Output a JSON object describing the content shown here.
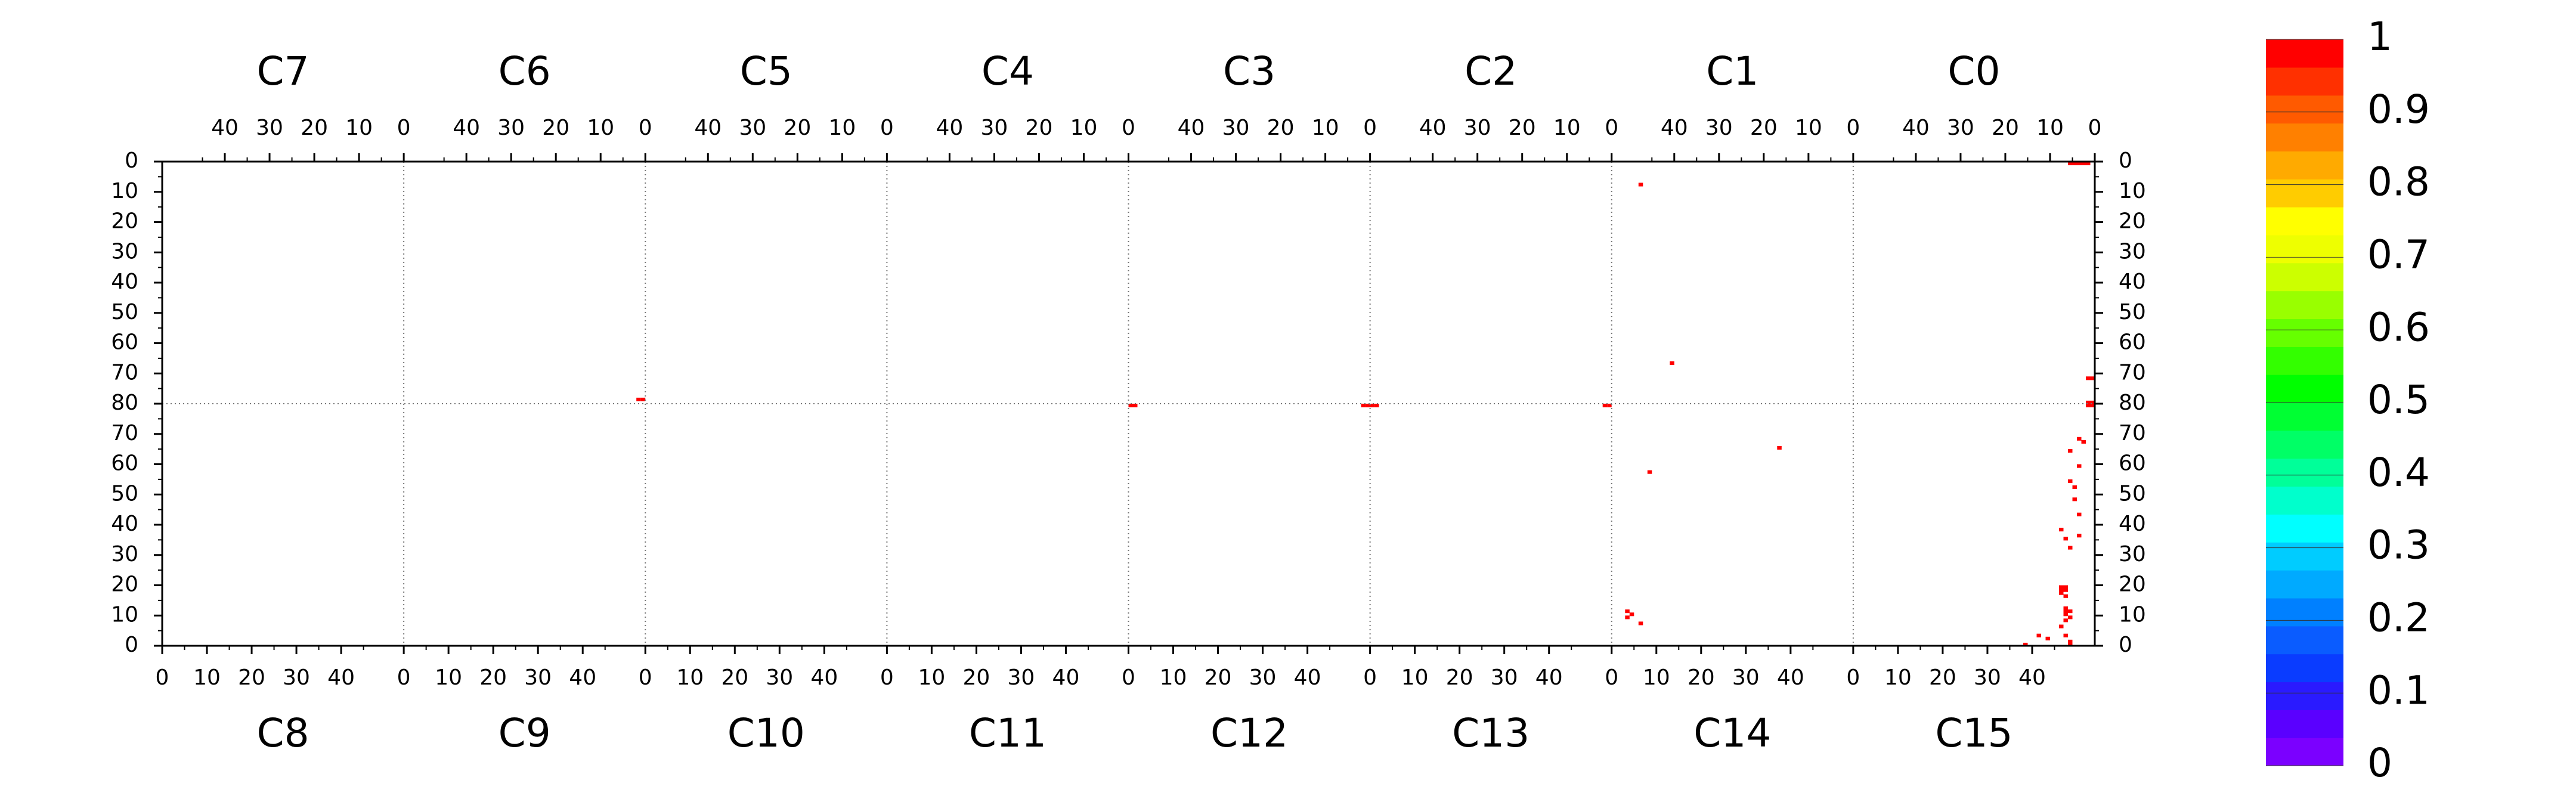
{
  "chart_data": {
    "type": "heatmap",
    "top_chambers": [
      "C7",
      "C6",
      "C5",
      "C4",
      "C3",
      "C2",
      "C1",
      "C0"
    ],
    "bottom_chambers": [
      "C8",
      "C9",
      "C10",
      "C11",
      "C12",
      "C13",
      "C14",
      "C15"
    ],
    "x_ticks_top": [
      "40",
      "30",
      "20",
      "10",
      "0"
    ],
    "x_ticks_bottom": [
      "0",
      "10",
      "20",
      "30",
      "40"
    ],
    "y_ticks_top_half": [
      "0",
      "10",
      "20",
      "30",
      "40",
      "50",
      "60",
      "70",
      "80"
    ],
    "y_ticks_bottom_half": [
      "70",
      "60",
      "50",
      "40",
      "30",
      "20",
      "10",
      "0"
    ],
    "zlim": [
      0,
      1
    ],
    "colorbar": {
      "labels": [
        "0",
        "0.1",
        "0.2",
        "0.3",
        "0.4",
        "0.5",
        "0.6",
        "0.7",
        "0.8",
        "0.9",
        "1"
      ],
      "colors": [
        "#7b00ff",
        "#5a00ff",
        "#2a1aff",
        "#0a3cff",
        "#0a5cff",
        "#0080ff",
        "#00aaff",
        "#00ccff",
        "#00ffff",
        "#00ffcc",
        "#00ff99",
        "#00ff66",
        "#00ff33",
        "#00ff00",
        "#33ff00",
        "#66ff00",
        "#99ff00",
        "#ccff00",
        "#eeff00",
        "#ffff00",
        "#ffcc00",
        "#ffaa00",
        "#ff8000",
        "#ff5a00",
        "#ff3000",
        "#ff0000"
      ]
    },
    "hit_color": "#ff0000",
    "grid": "dotted",
    "cells": [
      {
        "half": "top",
        "chamber": "C0",
        "pos": 1,
        "row": 0,
        "value": 1
      },
      {
        "half": "top",
        "chamber": "C0",
        "pos": 2,
        "row": 0,
        "value": 1
      },
      {
        "half": "top",
        "chamber": "C0",
        "pos": 3,
        "row": 0,
        "value": 1
      },
      {
        "half": "top",
        "chamber": "C0",
        "pos": 4,
        "row": 0,
        "value": 1
      },
      {
        "half": "top",
        "chamber": "C0",
        "pos": 5,
        "row": 0,
        "value": 1
      },
      {
        "half": "top",
        "chamber": "C1",
        "pos": 47,
        "row": 7,
        "value": 1
      },
      {
        "half": "top",
        "chamber": "C1",
        "pos": 40,
        "row": 66,
        "value": 1
      },
      {
        "half": "top",
        "chamber": "C6",
        "pos": 0,
        "row": 78,
        "value": 1
      },
      {
        "half": "top",
        "chamber": "C6",
        "pos": 1,
        "row": 78,
        "value": 1
      },
      {
        "half": "top",
        "chamber": "C0",
        "pos": 0,
        "row": 71,
        "value": 1
      },
      {
        "half": "top",
        "chamber": "C0",
        "pos": 1,
        "row": 71,
        "value": 1
      },
      {
        "half": "top",
        "chamber": "C0",
        "pos": 0,
        "row": 79,
        "value": 1
      },
      {
        "half": "top",
        "chamber": "C0",
        "pos": 1,
        "row": 79,
        "value": 1
      },
      {
        "half": "top",
        "chamber": "C0",
        "pos": 0,
        "row": 80,
        "value": 1
      },
      {
        "half": "top",
        "chamber": "C0",
        "pos": 1,
        "row": 80,
        "value": 1
      },
      {
        "half": "top",
        "chamber": "C3",
        "pos": 0,
        "row": 80,
        "value": 1
      },
      {
        "half": "top",
        "chamber": "C3",
        "pos": 1,
        "row": 80,
        "value": 1
      },
      {
        "half": "top",
        "chamber": "C2",
        "pos": 0,
        "row": 80,
        "value": 1
      },
      {
        "half": "top",
        "chamber": "C2",
        "pos": 1,
        "row": 80,
        "value": 1
      },
      {
        "half": "bottom",
        "chamber": "C12",
        "pos": 0,
        "row": 79,
        "value": 1
      },
      {
        "half": "bottom",
        "chamber": "C12",
        "pos": 1,
        "row": 79,
        "value": 1
      },
      {
        "half": "bottom",
        "chamber": "C13",
        "pos": 0,
        "row": 79,
        "value": 1
      },
      {
        "half": "bottom",
        "chamber": "C13",
        "pos": 1,
        "row": 79,
        "value": 1
      },
      {
        "half": "bottom",
        "chamber": "C14",
        "pos": 37,
        "row": 65,
        "value": 1
      },
      {
        "half": "bottom",
        "chamber": "C14",
        "pos": 8,
        "row": 57,
        "value": 1
      },
      {
        "half": "bottom",
        "chamber": "C14",
        "pos": 3,
        "row": 11,
        "value": 1
      },
      {
        "half": "bottom",
        "chamber": "C14",
        "pos": 4,
        "row": 10,
        "value": 1
      },
      {
        "half": "bottom",
        "chamber": "C14",
        "pos": 3,
        "row": 9,
        "value": 1
      },
      {
        "half": "bottom",
        "chamber": "C14",
        "pos": 6,
        "row": 7,
        "value": 1
      },
      {
        "half": "bottom",
        "chamber": "C15",
        "pos": 50,
        "row": 68,
        "value": 1
      },
      {
        "half": "bottom",
        "chamber": "C15",
        "pos": 51,
        "row": 67,
        "value": 1
      },
      {
        "half": "bottom",
        "chamber": "C15",
        "pos": 48,
        "row": 64,
        "value": 1
      },
      {
        "half": "bottom",
        "chamber": "C15",
        "pos": 50,
        "row": 59,
        "value": 1
      },
      {
        "half": "bottom",
        "chamber": "C15",
        "pos": 48,
        "row": 54,
        "value": 1
      },
      {
        "half": "bottom",
        "chamber": "C15",
        "pos": 49,
        "row": 52,
        "value": 1
      },
      {
        "half": "bottom",
        "chamber": "C15",
        "pos": 49,
        "row": 48,
        "value": 1
      },
      {
        "half": "bottom",
        "chamber": "C15",
        "pos": 50,
        "row": 43,
        "value": 1
      },
      {
        "half": "bottom",
        "chamber": "C15",
        "pos": 46,
        "row": 38,
        "value": 1
      },
      {
        "half": "bottom",
        "chamber": "C15",
        "pos": 50,
        "row": 36,
        "value": 1
      },
      {
        "half": "bottom",
        "chamber": "C15",
        "pos": 47,
        "row": 35,
        "value": 1
      },
      {
        "half": "bottom",
        "chamber": "C15",
        "pos": 48,
        "row": 32,
        "value": 1
      },
      {
        "half": "bottom",
        "chamber": "C15",
        "pos": 46,
        "row": 19,
        "value": 1
      },
      {
        "half": "bottom",
        "chamber": "C15",
        "pos": 47,
        "row": 19,
        "value": 1
      },
      {
        "half": "bottom",
        "chamber": "C15",
        "pos": 46,
        "row": 18,
        "value": 1
      },
      {
        "half": "bottom",
        "chamber": "C15",
        "pos": 47,
        "row": 18,
        "value": 1
      },
      {
        "half": "bottom",
        "chamber": "C15",
        "pos": 46,
        "row": 17,
        "value": 1
      },
      {
        "half": "bottom",
        "chamber": "C15",
        "pos": 47,
        "row": 16,
        "value": 1
      },
      {
        "half": "bottom",
        "chamber": "C15",
        "pos": 47,
        "row": 12,
        "value": 1
      },
      {
        "half": "bottom",
        "chamber": "C15",
        "pos": 47,
        "row": 11,
        "value": 1
      },
      {
        "half": "bottom",
        "chamber": "C15",
        "pos": 48,
        "row": 11,
        "value": 1
      },
      {
        "half": "bottom",
        "chamber": "C15",
        "pos": 47,
        "row": 10,
        "value": 1
      },
      {
        "half": "bottom",
        "chamber": "C15",
        "pos": 48,
        "row": 9,
        "value": 1
      },
      {
        "half": "bottom",
        "chamber": "C15",
        "pos": 47,
        "row": 8,
        "value": 1
      },
      {
        "half": "bottom",
        "chamber": "C15",
        "pos": 46,
        "row": 6,
        "value": 1
      },
      {
        "half": "bottom",
        "chamber": "C15",
        "pos": 47,
        "row": 3,
        "value": 1
      },
      {
        "half": "bottom",
        "chamber": "C15",
        "pos": 41,
        "row": 3,
        "value": 1
      },
      {
        "half": "bottom",
        "chamber": "C15",
        "pos": 43,
        "row": 2,
        "value": 1
      },
      {
        "half": "bottom",
        "chamber": "C15",
        "pos": 38,
        "row": 0,
        "value": 1
      },
      {
        "half": "bottom",
        "chamber": "C15",
        "pos": 48,
        "row": 1,
        "value": 1
      },
      {
        "half": "bottom",
        "chamber": "C15",
        "pos": 48,
        "row": 0,
        "value": 1
      }
    ]
  }
}
